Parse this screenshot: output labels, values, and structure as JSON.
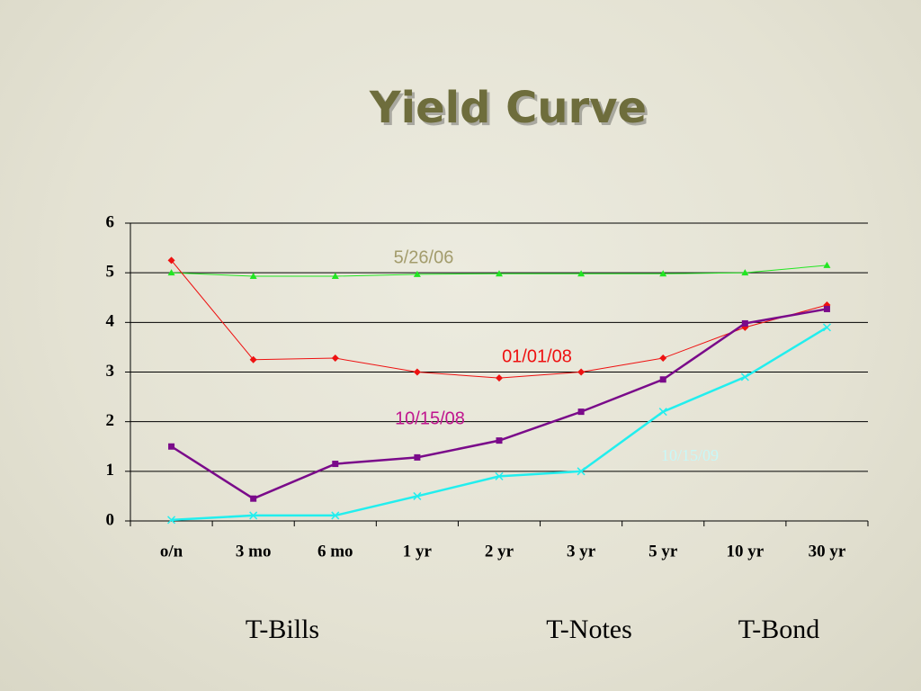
{
  "chart_data": {
    "type": "line",
    "title": "Yield Curve",
    "categories": [
      "o/n",
      "3 mo",
      "6 mo",
      "1 yr",
      "2 yr",
      "3 yr",
      "5 yr",
      "10 yr",
      "30 yr"
    ],
    "series": [
      {
        "name": "5/26/06",
        "color": "#22e622",
        "label_color": "#a39c6c",
        "marker": "triangle",
        "values": [
          5.0,
          4.93,
          4.93,
          4.97,
          4.98,
          4.98,
          4.98,
          5.0,
          5.15
        ]
      },
      {
        "name": "01/01/08",
        "color": "#ee1111",
        "label_color": "#ee1111",
        "marker": "diamond",
        "values": [
          5.25,
          3.25,
          3.28,
          3.0,
          2.88,
          3.0,
          3.28,
          3.9,
          4.35
        ]
      },
      {
        "name": "10/15/08",
        "color": "#7a0a8a",
        "label_color": "#c0178f",
        "marker": "square",
        "values": [
          1.5,
          0.45,
          1.15,
          1.28,
          1.62,
          2.2,
          2.85,
          3.98,
          4.27
        ]
      },
      {
        "name": "10/15/09",
        "color": "#22eeee",
        "label_color": "#c8f8f8",
        "marker": "x",
        "values": [
          0.02,
          0.11,
          0.11,
          0.5,
          0.9,
          1.0,
          2.2,
          2.9,
          3.9
        ]
      }
    ],
    "ylim": [
      0,
      6
    ],
    "yticks": [
      0,
      1,
      2,
      3,
      4,
      5,
      6
    ],
    "grid": true,
    "annotations": [
      "T-Bills",
      "T-Notes",
      "T-Bond"
    ]
  }
}
